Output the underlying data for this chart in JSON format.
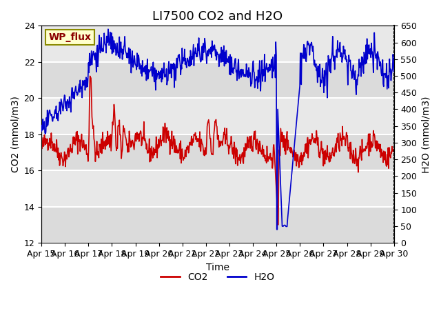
{
  "title": "LI7500 CO2 and H2O",
  "xlabel": "Time",
  "ylabel_left": "CO2 (mmol/m3)",
  "ylabel_right": "H2O (mmol/m3)",
  "ylim_left": [
    12,
    24
  ],
  "ylim_right": [
    0,
    650
  ],
  "yticks_left": [
    12,
    14,
    16,
    18,
    20,
    22,
    24
  ],
  "yticks_right": [
    0,
    50,
    100,
    150,
    200,
    250,
    300,
    350,
    400,
    450,
    500,
    550,
    600,
    650
  ],
  "xtick_labels": [
    "Apr 15",
    "Apr 16",
    "Apr 17",
    "Apr 18",
    "Apr 19",
    "Apr 20",
    "Apr 21",
    "Apr 22",
    "Apr 23",
    "Apr 24",
    "Apr 25",
    "Apr 26",
    "Apr 27",
    "Apr 28",
    "Apr 29",
    "Apr 30"
  ],
  "n_days": 16,
  "wp_flux_label": "WP_flux",
  "co2_color": "#cc0000",
  "h2o_color": "#0000cc",
  "bg_color": "#e8e8e8",
  "plot_bg": "#dcdcdc",
  "title_fontsize": 13,
  "axis_label_fontsize": 10,
  "tick_fontsize": 9,
  "legend_fontsize": 10,
  "linewidth": 1.2
}
